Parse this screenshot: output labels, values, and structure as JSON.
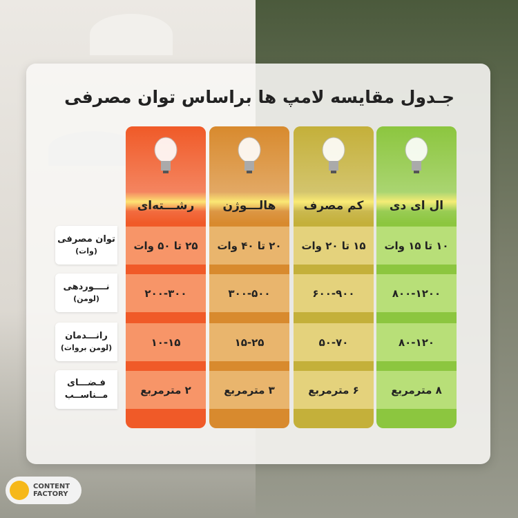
{
  "title": "جـدول مقایسه لامپ ها براساس توان مصرفی",
  "row_labels": [
    {
      "main": "توان مصرفی",
      "sub": "(وات)"
    },
    {
      "main": "نــــوردهی",
      "sub": "(لومن)"
    },
    {
      "main": "رانـــدمان",
      "sub": "(لومن بروات)"
    },
    {
      "main": "فـضـــای",
      "sub": "مــناســب"
    }
  ],
  "columns": [
    {
      "name": "ال ای دی",
      "icon": "led-bulb-icon",
      "header_color": "#8cc63f",
      "cell_color": "#b8df78",
      "values": [
        "۱۰ تا ۱۵ وات",
        "۸۰۰-۱۲۰۰",
        "۸۰-۱۲۰",
        "۸ مترمربع"
      ]
    },
    {
      "name": "کم مصرف",
      "icon": "cfl-bulb-icon",
      "header_color": "#c4b03a",
      "cell_color": "#e4d27c",
      "values": [
        "۱۵ تا ۲۰ وات",
        "۶۰۰-۹۰۰",
        "۵۰-۷۰",
        "۶ مترمربع"
      ]
    },
    {
      "name": "هالـــوژن",
      "icon": "halogen-bulb-icon",
      "header_color": "#d88a2e",
      "cell_color": "#e9b56d",
      "values": [
        "۲۰ تا ۴۰ وات",
        "۳۰۰-۵۰۰",
        "۱۵-۲۵",
        "۳ مترمربع"
      ]
    },
    {
      "name": "رشـــته‌ای",
      "icon": "incandescent-bulb-icon",
      "header_color": "#f05a28",
      "cell_color": "#f79568",
      "values": [
        "۲۵ تا ۵۰ وات",
        "۲۰۰-۳۰۰",
        "۱۰-۱۵",
        "۲ مترمربع"
      ]
    }
  ],
  "logo": {
    "line1": "CONTENT",
    "line2": "FACTORY"
  }
}
